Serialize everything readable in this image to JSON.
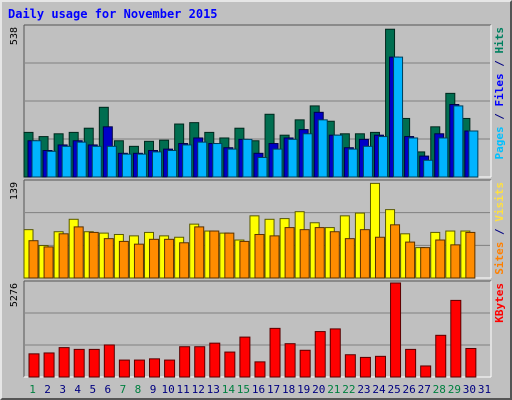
{
  "chart_data": {
    "type": "bar",
    "title": "Daily usage for November 2015",
    "x": [
      "1",
      "2",
      "3",
      "4",
      "5",
      "6",
      "7",
      "8",
      "9",
      "10",
      "11",
      "12",
      "13",
      "14",
      "15",
      "16",
      "17",
      "18",
      "19",
      "20",
      "21",
      "22",
      "23",
      "24",
      "25",
      "26",
      "27",
      "28",
      "29",
      "30",
      "31"
    ],
    "weekend_days": [
      "1",
      "7",
      "8",
      "14",
      "15",
      "21",
      "22",
      "28",
      "29"
    ],
    "panels": [
      {
        "id": "hits-files-pages",
        "max_label": "538",
        "ylim": [
          0,
          538
        ],
        "label_parts": [
          {
            "text": "Pages",
            "color": "#00c0ff"
          },
          {
            "text": " / ",
            "color": "#000080"
          },
          {
            "text": "Files",
            "color": "#0000ff"
          },
          {
            "text": " / ",
            "color": "#000080"
          },
          {
            "text": "Hits",
            "color": "#008060"
          }
        ],
        "series": [
          {
            "name": "Hits",
            "color": "#006e50",
            "values": [
              160,
              145,
              155,
              160,
              175,
              250,
              130,
              110,
              128,
              132,
              190,
              195,
              160,
              140,
              175,
              130,
              225,
              150,
              205,
              255,
              200,
              155,
              155,
              160,
              530,
              210,
              90,
              180,
              300,
              210,
              0
            ]
          },
          {
            "name": "Files",
            "color": "#0000c8",
            "values": [
              130,
              95,
              115,
              130,
              115,
              180,
              85,
              85,
              95,
              100,
              120,
              140,
              120,
              105,
              135,
              85,
              120,
              140,
              170,
              232,
              150,
              105,
              135,
              150,
              430,
              145,
              75,
              155,
              260,
              165,
              0
            ]
          },
          {
            "name": "Pages",
            "color": "#00b4ff",
            "values": [
              130,
              92,
              110,
              125,
              110,
              110,
              82,
              82,
              90,
              95,
              115,
              125,
              120,
              100,
              135,
              70,
              100,
              135,
              155,
              205,
              150,
              100,
              110,
              145,
              430,
              140,
              60,
              140,
              255,
              165,
              0
            ]
          }
        ]
      },
      {
        "id": "visits-sites",
        "max_label": "139",
        "ylim": [
          0,
          139
        ],
        "label_parts": [
          {
            "text": "Sites",
            "color": "#ff8000"
          },
          {
            "text": " / ",
            "color": "#000080"
          },
          {
            "text": "Visits",
            "color": "#ffe040"
          }
        ],
        "series": [
          {
            "name": "Visits",
            "color": "#ffff00",
            "values": [
              70,
              47,
              67,
              85,
              67,
              65,
              63,
              61,
              66,
              61,
              59,
              78,
              68,
              65,
              55,
              90,
              85,
              86,
              96,
              80,
              73,
              90,
              94,
              137,
              99,
              64,
              44,
              66,
              68,
              68,
              0
            ]
          },
          {
            "name": "Sites",
            "color": "#ff8c00",
            "values": [
              54,
              45,
              64,
              74,
              66,
              57,
              53,
              49,
              56,
              56,
              51,
              74,
              68,
              65,
              53,
              63,
              61,
              73,
              70,
              73,
              67,
              57,
              70,
              59,
              77,
              52,
              44,
              55,
              48,
              66,
              0
            ]
          }
        ]
      },
      {
        "id": "kbytes",
        "max_label": "5276",
        "ylim": [
          0,
          5276
        ],
        "label_parts": [
          {
            "text": "KBytes",
            "color": "#ff0000"
          }
        ],
        "series": [
          {
            "name": "KBytes",
            "color": "#ff0000",
            "values": [
              1300,
              1350,
              1650,
              1550,
              1550,
              1800,
              950,
              950,
              1020,
              950,
              1700,
              1700,
              1900,
              1400,
              2240,
              850,
              2730,
              1870,
              1500,
              2550,
              2700,
              1250,
              1100,
              1160,
              5276,
              1550,
              620,
              2340,
              4300,
              1600,
              0
            ]
          }
        ]
      }
    ]
  },
  "colors": {
    "background": "#c0c0c0",
    "plot_background": "#c0c0c0",
    "title": "#0000ff",
    "day_label": "#000080",
    "weekend_day_label": "#008040",
    "gridline": "#808080"
  }
}
